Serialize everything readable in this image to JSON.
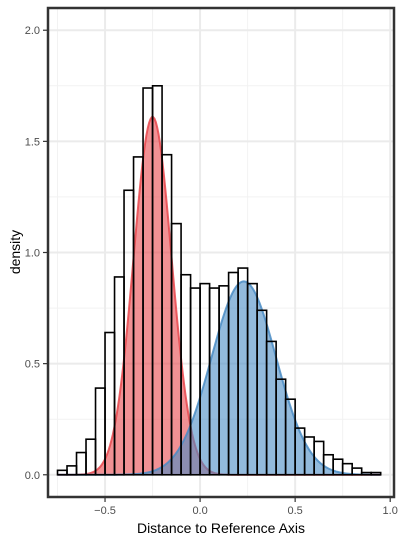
{
  "chart_data": {
    "type": "histogram-density",
    "xlabel": "Distance to Reference Axis",
    "ylabel": "density",
    "xlim": [
      -0.8,
      1.02
    ],
    "ylim": [
      -0.1,
      2.1
    ],
    "x_ticks": [
      {
        "value": -0.5,
        "label": "−0.5"
      },
      {
        "value": 0.0,
        "label": "0.0"
      },
      {
        "value": 0.5,
        "label": "0.5"
      },
      {
        "value": 1.0,
        "label": "1.0"
      }
    ],
    "y_ticks": [
      {
        "value": 0.0,
        "label": "0.0"
      },
      {
        "value": 0.5,
        "label": "0.5"
      },
      {
        "value": 1.0,
        "label": "1.0"
      },
      {
        "value": 1.5,
        "label": "1.5"
      },
      {
        "value": 2.0,
        "label": "2.0"
      }
    ],
    "grid": true,
    "histogram": {
      "bin_width": 0.05,
      "bins": [
        {
          "x0": -0.75,
          "x1": -0.7,
          "density": 0.02
        },
        {
          "x0": -0.7,
          "x1": -0.65,
          "density": 0.04
        },
        {
          "x0": -0.65,
          "x1": -0.6,
          "density": 0.1
        },
        {
          "x0": -0.6,
          "x1": -0.55,
          "density": 0.16
        },
        {
          "x0": -0.55,
          "x1": -0.5,
          "density": 0.39
        },
        {
          "x0": -0.5,
          "x1": -0.45,
          "density": 0.64
        },
        {
          "x0": -0.45,
          "x1": -0.4,
          "density": 0.89
        },
        {
          "x0": -0.4,
          "x1": -0.35,
          "density": 1.28
        },
        {
          "x0": -0.35,
          "x1": -0.3,
          "density": 1.43
        },
        {
          "x0": -0.3,
          "x1": -0.25,
          "density": 1.74
        },
        {
          "x0": -0.25,
          "x1": -0.2,
          "density": 1.75
        },
        {
          "x0": -0.2,
          "x1": -0.15,
          "density": 1.44
        },
        {
          "x0": -0.15,
          "x1": -0.1,
          "density": 1.13
        },
        {
          "x0": -0.1,
          "x1": -0.05,
          "density": 0.9
        },
        {
          "x0": -0.05,
          "x1": 0.0,
          "density": 0.84
        },
        {
          "x0": 0.0,
          "x1": 0.05,
          "density": 0.86
        },
        {
          "x0": 0.05,
          "x1": 0.1,
          "density": 0.84
        },
        {
          "x0": 0.1,
          "x1": 0.15,
          "density": 0.85
        },
        {
          "x0": 0.15,
          "x1": 0.2,
          "density": 0.91
        },
        {
          "x0": 0.2,
          "x1": 0.25,
          "density": 0.93
        },
        {
          "x0": 0.25,
          "x1": 0.3,
          "density": 0.86
        },
        {
          "x0": 0.3,
          "x1": 0.35,
          "density": 0.74
        },
        {
          "x0": 0.35,
          "x1": 0.4,
          "density": 0.6
        },
        {
          "x0": 0.4,
          "x1": 0.45,
          "density": 0.43
        },
        {
          "x0": 0.45,
          "x1": 0.5,
          "density": 0.34
        },
        {
          "x0": 0.5,
          "x1": 0.55,
          "density": 0.21
        },
        {
          "x0": 0.55,
          "x1": 0.6,
          "density": 0.17
        },
        {
          "x0": 0.6,
          "x1": 0.65,
          "density": 0.15
        },
        {
          "x0": 0.65,
          "x1": 0.7,
          "density": 0.09
        },
        {
          "x0": 0.7,
          "x1": 0.75,
          "density": 0.07
        },
        {
          "x0": 0.75,
          "x1": 0.8,
          "density": 0.05
        },
        {
          "x0": 0.8,
          "x1": 0.85,
          "density": 0.03
        },
        {
          "x0": 0.85,
          "x1": 0.9,
          "density": 0.01
        },
        {
          "x0": 0.9,
          "x1": 0.95,
          "density": 0.01
        }
      ]
    },
    "density_curves": [
      {
        "color": "#e8474c",
        "peak_x": -0.25,
        "peak_density": 1.61,
        "sd": 0.1,
        "x_range": [
          -0.75,
          0.95
        ]
      },
      {
        "color": "#4a8cc4",
        "peak_x": 0.23,
        "peak_density": 0.87,
        "sd": 0.17,
        "x_range": [
          -0.75,
          0.95
        ]
      }
    ]
  }
}
